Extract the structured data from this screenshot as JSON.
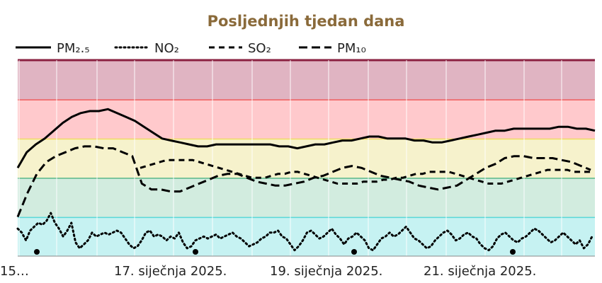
{
  "chart_data": {
    "type": "line",
    "title": "Posljednjih tjedan dana",
    "legend_position": "top-left",
    "x_tick_labels": [
      "15…",
      "17. siječnja 2025.",
      "19. siječnja 2025.",
      "21. siječnja 2025."
    ],
    "bands": [
      {
        "level": "good",
        "color": "#c6f2f2",
        "line_color": "#5ad8d8"
      },
      {
        "level": "fair",
        "color": "#d2ecdf",
        "line_color": "#5cb88c"
      },
      {
        "level": "moderate",
        "color": "#f6f2cc",
        "line_color": "#f0dc60"
      },
      {
        "level": "poor",
        "color": "#ffc9cc",
        "line_color": "#f05a5a"
      },
      {
        "level": "very-poor",
        "color": "#e0b4c2",
        "line_color": "#8a2040"
      }
    ],
    "series": [
      {
        "name": "PM₂.₅",
        "style": "solid",
        "color": "#000000",
        "values": [
          45,
          53,
          57,
          60,
          64,
          68,
          71,
          73,
          74,
          74,
          75,
          73,
          71,
          69,
          66,
          63,
          60,
          59,
          58,
          57,
          56,
          56,
          57,
          57,
          57,
          57,
          57,
          57,
          57,
          56,
          56,
          55,
          56,
          57,
          57,
          58,
          59,
          59,
          60,
          61,
          61,
          60,
          60,
          60,
          59,
          59,
          58,
          58,
          59,
          60,
          61,
          62,
          63,
          64,
          64,
          65,
          65,
          65,
          65,
          65,
          66,
          66,
          65,
          65,
          64
        ]
      },
      {
        "name": "NO₂",
        "style": "dotted",
        "color": "#000000",
        "values": [
          14,
          12,
          8,
          13,
          15,
          17,
          16,
          18,
          22,
          17,
          14,
          10,
          13,
          17,
          7,
          4,
          6,
          8,
          12,
          10,
          11,
          12,
          11,
          12,
          13,
          12,
          9,
          6,
          4,
          5,
          8,
          12,
          13,
          10,
          11,
          10,
          8,
          10,
          9,
          12,
          7,
          4,
          5,
          8,
          9,
          10,
          9,
          10,
          11,
          9,
          10,
          11,
          12,
          10,
          9,
          7,
          5,
          6,
          7,
          9,
          10,
          12,
          12,
          13,
          10,
          9,
          6,
          3,
          5,
          8,
          12,
          13,
          11,
          9,
          10,
          12,
          14,
          11,
          9,
          6,
          9,
          10,
          12,
          10,
          8,
          4,
          3,
          6,
          9,
          10,
          12,
          10,
          11,
          13,
          15,
          12,
          9,
          8,
          6,
          4,
          5,
          8,
          10,
          12,
          13,
          11,
          8,
          9,
          11,
          12,
          10,
          9,
          6,
          4,
          3,
          5,
          9,
          11,
          12,
          10,
          8,
          7,
          9,
          10,
          12,
          14,
          13,
          11,
          9,
          7,
          8,
          10,
          12,
          10,
          8,
          6,
          8,
          4,
          6,
          10
        ]
      },
      {
        "name": "SO₂",
        "style": "dashed",
        "color": "#000000",
        "values": [
          45,
          46,
          47,
          48,
          49,
          49,
          49,
          49,
          49,
          48,
          47,
          46,
          45,
          44,
          43,
          42,
          41,
          40,
          40,
          40,
          41,
          42,
          42,
          43,
          43,
          42,
          41,
          40,
          39,
          38,
          37,
          37,
          37,
          37,
          38,
          38,
          38,
          39,
          39,
          40,
          40,
          41,
          42,
          42,
          43,
          43,
          43,
          43,
          42,
          41,
          40,
          39,
          38,
          37,
          37,
          37,
          38,
          39,
          40,
          41,
          42,
          43,
          44,
          44,
          44,
          44,
          43,
          43,
          43,
          43
        ]
      },
      {
        "name": "PM₁₀",
        "style": "dashed-long",
        "color": "#000000",
        "values": [
          20,
          32,
          42,
          48,
          51,
          53,
          55,
          56,
          56,
          55,
          55,
          53,
          51,
          37,
          34,
          34,
          33,
          33,
          35,
          37,
          39,
          41,
          42,
          42,
          40,
          38,
          37,
          36,
          36,
          37,
          38,
          40,
          41,
          43,
          45,
          46,
          45,
          43,
          41,
          40,
          39,
          38,
          36,
          35,
          34,
          35,
          36,
          39,
          42,
          45,
          47,
          50,
          51,
          51,
          50,
          50,
          50,
          49,
          48,
          46,
          44
        ]
      }
    ]
  }
}
